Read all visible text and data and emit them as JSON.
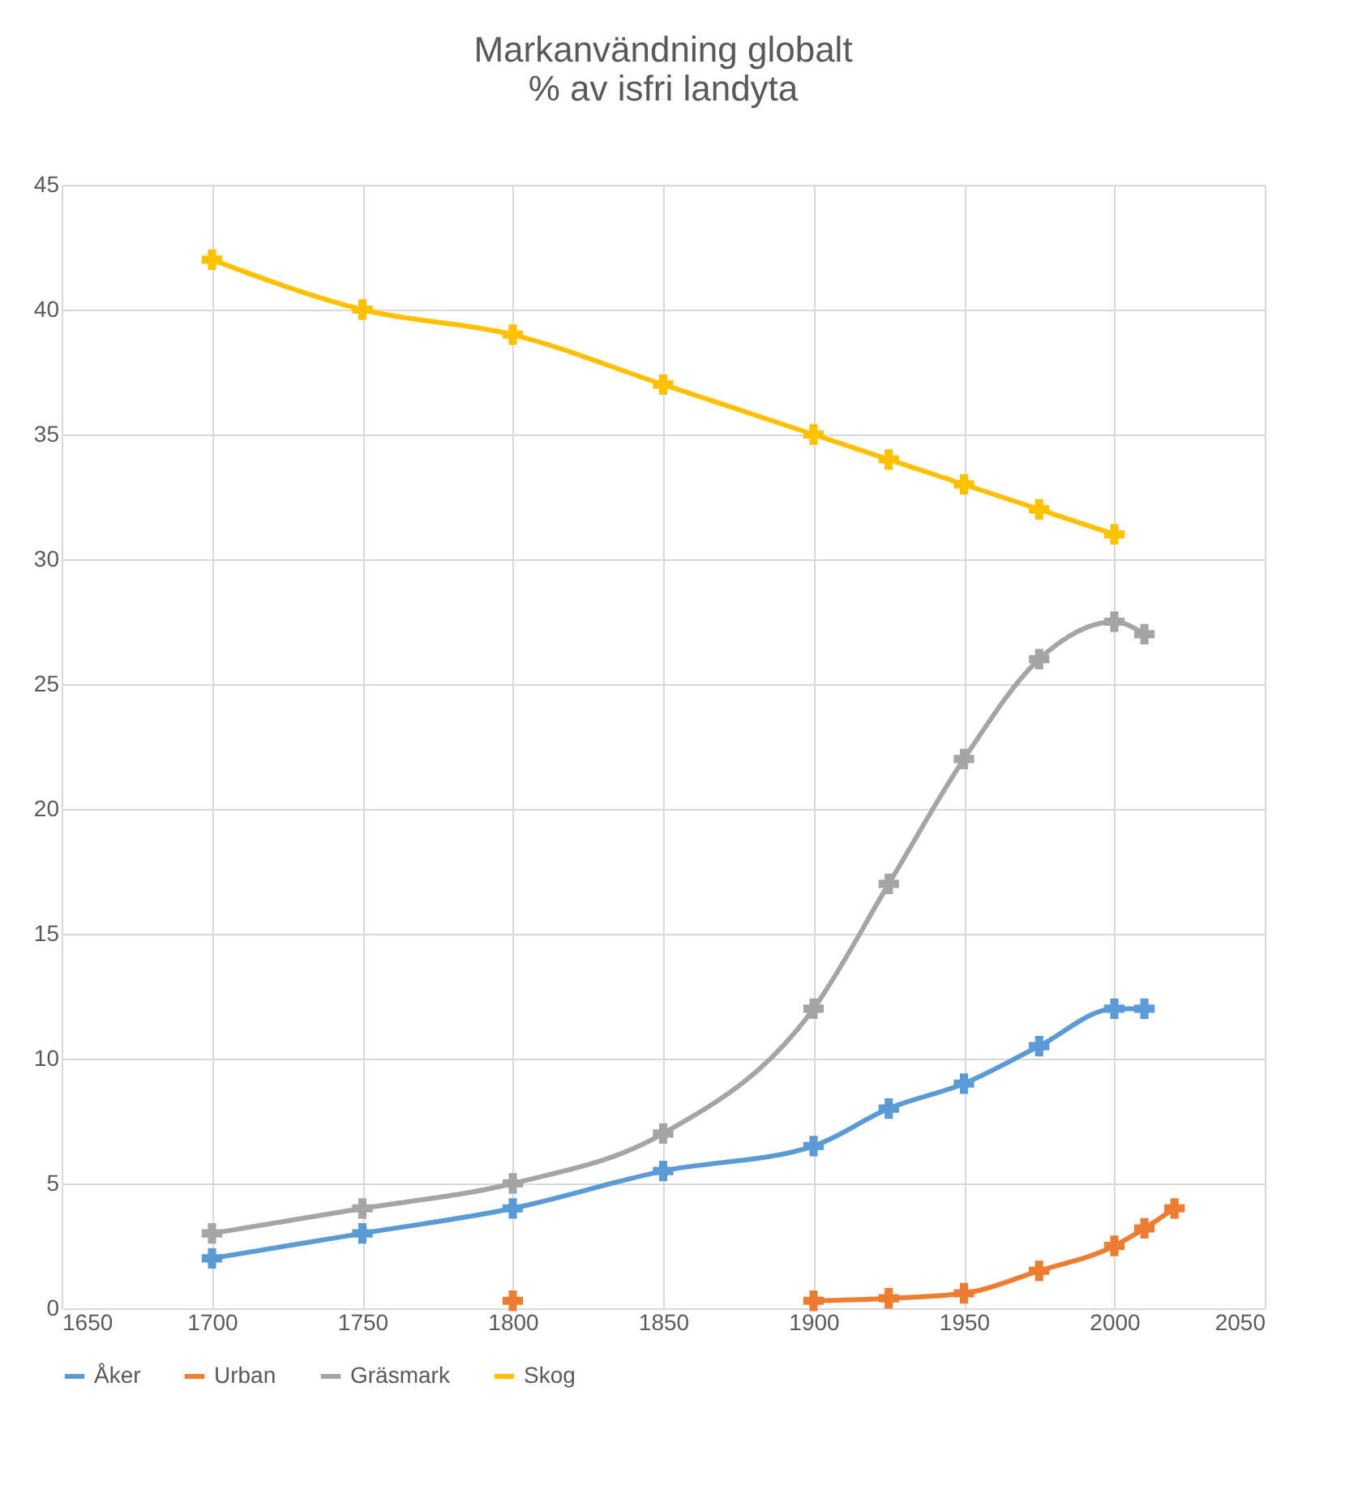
{
  "chart_data": {
    "type": "line",
    "title": [
      "Markanvändning globalt",
      "% av isfri landyta"
    ],
    "x": [
      1700,
      1750,
      1800,
      1850,
      1900,
      1925,
      1950,
      1975,
      2000,
      2010
    ],
    "series": [
      {
        "name": "Åker",
        "color": "#5b9bd5",
        "values": [
          2,
          3,
          4,
          5.5,
          6.5,
          8,
          9,
          10.5,
          12,
          12
        ]
      },
      {
        "name": "Urban",
        "color": "#ed7d31",
        "x": [
          1800,
          1850,
          1900,
          1925,
          1950,
          1975,
          2000,
          2010,
          2020
        ],
        "values": [
          0.3,
          null,
          0.3,
          0.4,
          0.6,
          1.5,
          2.5,
          3.2,
          4
        ]
      },
      {
        "name": "Gräsmark",
        "color": "#a5a5a5",
        "values": [
          3,
          4,
          5,
          7,
          12,
          17,
          22,
          26,
          27.5,
          27
        ]
      },
      {
        "name": "Skog",
        "color": "#ffc000",
        "values": [
          42,
          40,
          39,
          37,
          35,
          34,
          33,
          32,
          31,
          null
        ]
      }
    ],
    "xlim": [
      1650,
      2050
    ],
    "xticks": [
      1650,
      1700,
      1750,
      1800,
      1850,
      1900,
      1950,
      2000,
      2050
    ],
    "ylim": [
      0,
      45
    ],
    "yticks": [
      0,
      5,
      10,
      15,
      20,
      25,
      30,
      35,
      40,
      45
    ],
    "grid": true,
    "legend": "bottom",
    "marker": "cross",
    "line_style": "solid"
  }
}
